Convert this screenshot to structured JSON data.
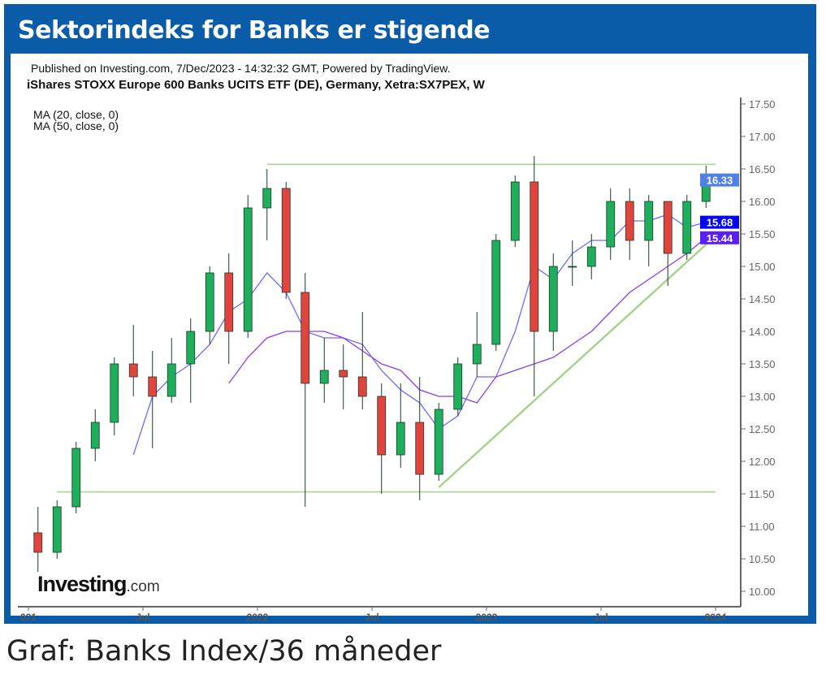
{
  "header": {
    "title": "Sektorindeks for Banks er stigende"
  },
  "caption": "Graf: Banks Index/36 måneder",
  "chart_data": {
    "type": "candlestick",
    "published": "Published on Investing.com, 7/Dec/2023 - 14:32:32 GMT, Powered by TradingView.",
    "title": "iShares STOXX Europe 600 Banks UCITS ETF (DE), Germany, Xetra:SX7PEX, W",
    "legend": [
      "MA (20, close, 0)",
      "MA (50, close, 0)"
    ],
    "logo": "Investing.com",
    "ylim": [
      9.8,
      17.6
    ],
    "y_ticks": [
      "17.50",
      "17.00",
      "16.50",
      "16.00",
      "15.50",
      "15.00",
      "14.50",
      "14.00",
      "13.50",
      "13.00",
      "12.50",
      "12.00",
      "11.50",
      "11.00",
      "10.50",
      "10.00"
    ],
    "x_ticks": [
      {
        "label": "021",
        "date": "2021-01"
      },
      {
        "label": "Jul",
        "date": "2021-07"
      },
      {
        "label": "2022",
        "date": "2022-01"
      },
      {
        "label": "Jul",
        "date": "2022-07"
      },
      {
        "label": "2023",
        "date": "2023-01"
      },
      {
        "label": "Jul",
        "date": "2023-07"
      },
      {
        "label": "2024",
        "date": "2024-01"
      }
    ],
    "price_labels": [
      {
        "value": "16.33",
        "color": "#4f7fe8"
      },
      {
        "value": "15.68",
        "color": "#0000ff"
      },
      {
        "value": "15.44",
        "color": "#5a1ff5"
      }
    ],
    "colors": {
      "up": "#1fae5c",
      "down": "#e0443c",
      "ma20": "#6b6bff",
      "ma50": "#8a3df0",
      "trend": "#a6d48a",
      "frame": "#0a5ca8"
    },
    "candles": [
      [
        "2021-01",
        10.9,
        11.3,
        10.3,
        10.6
      ],
      [
        "2021-02",
        10.6,
        11.4,
        10.5,
        11.3
      ],
      [
        "2021-03",
        11.3,
        12.3,
        11.2,
        12.2
      ],
      [
        "2021-04",
        12.2,
        12.8,
        12.0,
        12.6
      ],
      [
        "2021-05",
        12.6,
        13.6,
        12.4,
        13.5
      ],
      [
        "2021-06",
        13.5,
        14.1,
        13.0,
        13.3
      ],
      [
        "2021-07",
        13.3,
        13.7,
        12.2,
        13.0
      ],
      [
        "2021-08",
        13.0,
        13.9,
        12.9,
        13.5
      ],
      [
        "2021-09",
        13.5,
        14.2,
        12.9,
        14.0
      ],
      [
        "2021-10",
        14.0,
        15.0,
        13.8,
        14.9
      ],
      [
        "2021-11",
        14.9,
        15.2,
        13.5,
        14.0
      ],
      [
        "2021-12",
        14.0,
        16.1,
        13.9,
        15.9
      ],
      [
        "2022-01",
        15.9,
        16.5,
        15.4,
        16.2
      ],
      [
        "2022-02",
        16.2,
        16.3,
        14.5,
        14.6
      ],
      [
        "2022-03",
        14.6,
        14.9,
        11.3,
        13.2
      ],
      [
        "2022-04",
        13.2,
        13.9,
        12.9,
        13.4
      ],
      [
        "2022-05",
        13.4,
        13.8,
        12.8,
        13.3
      ],
      [
        "2022-06",
        13.3,
        14.3,
        12.8,
        13.0
      ],
      [
        "2022-07",
        13.0,
        13.2,
        11.5,
        12.1
      ],
      [
        "2022-08",
        12.1,
        13.2,
        11.9,
        12.6
      ],
      [
        "2022-09",
        12.6,
        13.3,
        11.4,
        11.8
      ],
      [
        "2022-10",
        11.8,
        12.9,
        11.7,
        12.8
      ],
      [
        "2022-11",
        12.8,
        13.6,
        12.7,
        13.5
      ],
      [
        "2022-12",
        13.5,
        14.3,
        13.3,
        13.8
      ],
      [
        "2023-01",
        13.8,
        15.5,
        13.7,
        15.4
      ],
      [
        "2023-02",
        15.4,
        16.4,
        15.3,
        16.3
      ],
      [
        "2023-03",
        16.3,
        16.7,
        13.0,
        14.0
      ],
      [
        "2023-04",
        14.0,
        15.2,
        13.7,
        15.0
      ],
      [
        "2023-05",
        15.0,
        15.4,
        14.7,
        15.0
      ],
      [
        "2023-06",
        15.0,
        15.5,
        14.8,
        15.3
      ],
      [
        "2023-07",
        15.3,
        16.2,
        15.1,
        16.0
      ],
      [
        "2023-08",
        16.0,
        16.2,
        15.1,
        15.4
      ],
      [
        "2023-09",
        15.4,
        16.1,
        15.0,
        16.0
      ],
      [
        "2023-10",
        16.0,
        16.0,
        14.7,
        15.2
      ],
      [
        "2023-11",
        15.2,
        16.1,
        15.1,
        16.0
      ],
      [
        "2023-12",
        16.0,
        16.55,
        15.9,
        16.33
      ]
    ],
    "ma20": [
      [
        "2021-06",
        12.1
      ],
      [
        "2021-07",
        13.0
      ],
      [
        "2021-08",
        13.3
      ],
      [
        "2021-09",
        13.5
      ],
      [
        "2021-10",
        13.8
      ],
      [
        "2021-11",
        14.3
      ],
      [
        "2021-12",
        14.5
      ],
      [
        "2022-01",
        14.9
      ],
      [
        "2022-02",
        14.6
      ],
      [
        "2022-03",
        14.0
      ],
      [
        "2022-04",
        13.9
      ],
      [
        "2022-05",
        13.9
      ],
      [
        "2022-06",
        13.8
      ],
      [
        "2022-07",
        13.4
      ],
      [
        "2022-08",
        13.1
      ],
      [
        "2022-09",
        12.9
      ],
      [
        "2022-10",
        12.5
      ],
      [
        "2022-11",
        12.7
      ],
      [
        "2022-12",
        13.3
      ],
      [
        "2023-01",
        13.3
      ],
      [
        "2023-02",
        14.0
      ],
      [
        "2023-03",
        15.0
      ],
      [
        "2023-04",
        14.8
      ],
      [
        "2023-05",
        15.2
      ],
      [
        "2023-06",
        15.4
      ],
      [
        "2023-07",
        15.4
      ],
      [
        "2023-08",
        15.7
      ],
      [
        "2023-09",
        15.7
      ],
      [
        "2023-10",
        15.8
      ],
      [
        "2023-11",
        15.6
      ],
      [
        "2023-12",
        15.68
      ]
    ],
    "ma50": [
      [
        "2021-11",
        13.2
      ],
      [
        "2021-12",
        13.6
      ],
      [
        "2022-01",
        13.9
      ],
      [
        "2022-02",
        14.0
      ],
      [
        "2022-03",
        14.0
      ],
      [
        "2022-04",
        14.0
      ],
      [
        "2022-05",
        13.9
      ],
      [
        "2022-06",
        13.7
      ],
      [
        "2022-07",
        13.5
      ],
      [
        "2022-08",
        13.4
      ],
      [
        "2022-09",
        13.1
      ],
      [
        "2022-10",
        13.0
      ],
      [
        "2022-11",
        13.0
      ],
      [
        "2022-12",
        12.9
      ],
      [
        "2023-01",
        13.3
      ],
      [
        "2023-02",
        13.4
      ],
      [
        "2023-03",
        13.5
      ],
      [
        "2023-04",
        13.6
      ],
      [
        "2023-05",
        13.8
      ],
      [
        "2023-06",
        14.0
      ],
      [
        "2023-07",
        14.3
      ],
      [
        "2023-08",
        14.6
      ],
      [
        "2023-09",
        14.8
      ],
      [
        "2023-10",
        15.0
      ],
      [
        "2023-11",
        15.2
      ],
      [
        "2023-12",
        15.44
      ]
    ],
    "trendlines": [
      {
        "from": [
          "2022-01",
          16.57
        ],
        "to": [
          "2024-01",
          16.57
        ]
      },
      {
        "from": [
          "2021-02",
          11.53
        ],
        "to": [
          "2024-01",
          11.53
        ]
      },
      {
        "from": [
          "2022-10",
          11.6
        ],
        "to": [
          "2024-01",
          15.47
        ]
      }
    ]
  }
}
